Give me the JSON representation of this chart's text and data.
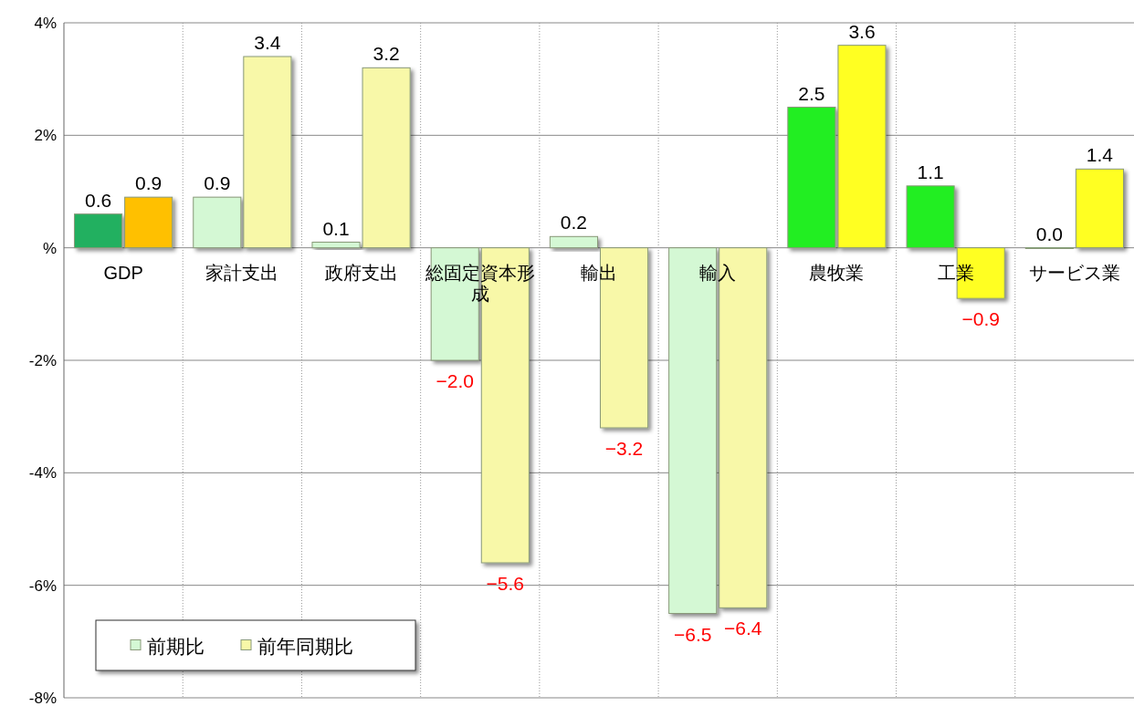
{
  "chart_data": {
    "type": "bar",
    "categories": [
      "GDP",
      "家計支出",
      "政府支出",
      "総固定資本形成",
      "輸出",
      "輸入",
      "農牧業",
      "工業",
      "サービス業"
    ],
    "series": [
      {
        "name": "前期比",
        "color": "#d4f8d4",
        "colors": [
          "#22b060",
          "#d4f8d4",
          "#d4f8d4",
          "#d4f8d4",
          "#d4f8d4",
          "#d4f8d4",
          "#22ee22",
          "#22ee22",
          "#22ee22"
        ],
        "values": [
          0.6,
          0.9,
          0.1,
          -2.0,
          0.2,
          -6.5,
          2.5,
          1.1,
          0.0
        ],
        "value_labels": [
          "0.6",
          "0.9",
          "0.1",
          "−2.0",
          "0.2",
          "−6.5",
          "2.5",
          "1.1",
          "0.0"
        ]
      },
      {
        "name": "前年同期比",
        "color": "#f8f8a8",
        "colors": [
          "#ffc000",
          "#f8f8a8",
          "#f8f8a8",
          "#f8f8a8",
          "#f8f8a8",
          "#f8f8a8",
          "#ffff20",
          "#ffff20",
          "#ffff20"
        ],
        "values": [
          0.9,
          3.4,
          3.2,
          -5.6,
          -3.2,
          -6.4,
          3.6,
          -0.9,
          1.4
        ],
        "value_labels": [
          "0.9",
          "3.4",
          "3.2",
          "−5.6",
          "−3.2",
          "−6.4",
          "3.6",
          "−0.9",
          "1.4"
        ]
      }
    ],
    "ylim": [
      -8,
      4
    ],
    "yticks": [
      {
        "value": -8,
        "label": "-8%"
      },
      {
        "value": -6,
        "label": "-6%"
      },
      {
        "value": -4,
        "label": "-4%"
      },
      {
        "value": -2,
        "label": "-2%"
      },
      {
        "value": 0,
        "label": "%"
      },
      {
        "value": 2,
        "label": "2%"
      },
      {
        "value": 4,
        "label": "4%"
      }
    ],
    "grid": true,
    "legend": "bottom left"
  }
}
